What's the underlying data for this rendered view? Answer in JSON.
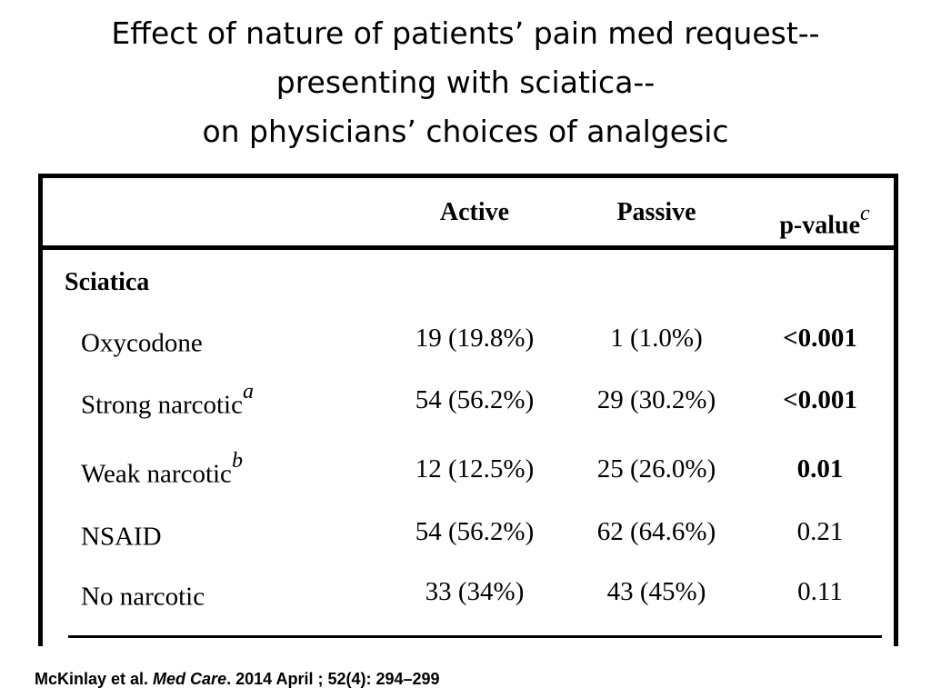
{
  "title": {
    "line1": "Effect of nature of patients’ pain med request--",
    "line2": "presenting with sciatica--",
    "line3": "on physicians’ choices of analgesic"
  },
  "table": {
    "headers": {
      "active": "Active",
      "passive": "Passive",
      "pvalue": "p-value",
      "pvalue_footnote": "c"
    },
    "section": "Sciatica",
    "rows": [
      {
        "label": "Oxycodone",
        "footnote": "",
        "active": "19 (19.8%)",
        "passive": "1 (1.0%)",
        "pvalue": "<0.001",
        "pvalue_bold": true
      },
      {
        "label": "Strong narcotic",
        "footnote": "a",
        "active": "54 (56.2%)",
        "passive": "29 (30.2%)",
        "pvalue": "<0.001",
        "pvalue_bold": true
      },
      {
        "label": "Weak narcotic",
        "footnote": "b",
        "active": "12 (12.5%)",
        "passive": "25 (26.0%)",
        "pvalue": "0.01",
        "pvalue_bold": true
      },
      {
        "label": "NSAID",
        "footnote": "",
        "active": "54 (56.2%)",
        "passive": "62 (64.6%)",
        "pvalue": "0.21",
        "pvalue_bold": false
      },
      {
        "label": "No narcotic",
        "footnote": "",
        "active": "33 (34%)",
        "passive": "43 (45%)",
        "pvalue": "0.11",
        "pvalue_bold": false
      }
    ]
  },
  "citation": {
    "authors": "McKinlay et al. ",
    "journal": "Med Care",
    "details": ". 2014 April ; 52(4): 294–299"
  }
}
